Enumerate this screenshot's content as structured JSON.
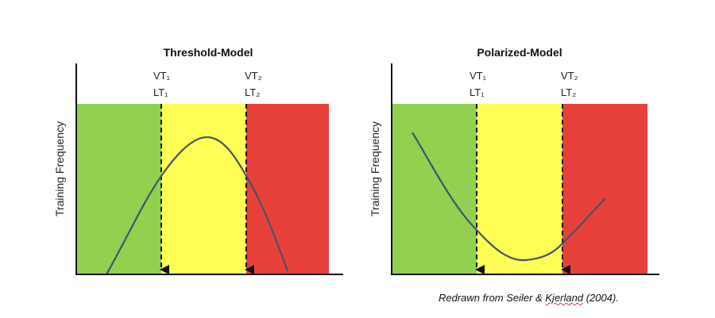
{
  "colors": {
    "low": "#92d050",
    "moderate": "#ffff55",
    "high": "#e8403a",
    "curve": "#44546a"
  },
  "panels": [
    {
      "title": "Threshold-Model",
      "ylabel": "Training Frequency",
      "threshold1": {
        "top": "VT₁",
        "bottom": "LT₁"
      },
      "threshold2": {
        "top": "VT₂",
        "bottom": "LT₂"
      }
    },
    {
      "title": "Polarized-Model",
      "ylabel": "Training Frequency",
      "threshold1": {
        "top": "VT₁",
        "bottom": "LT₁"
      },
      "threshold2": {
        "top": "VT₂",
        "bottom": "LT₂"
      }
    }
  ],
  "caption": {
    "prefix": "Redrawn from Seiler & ",
    "author": "Kjerland",
    "suffix": " (2004)."
  }
}
